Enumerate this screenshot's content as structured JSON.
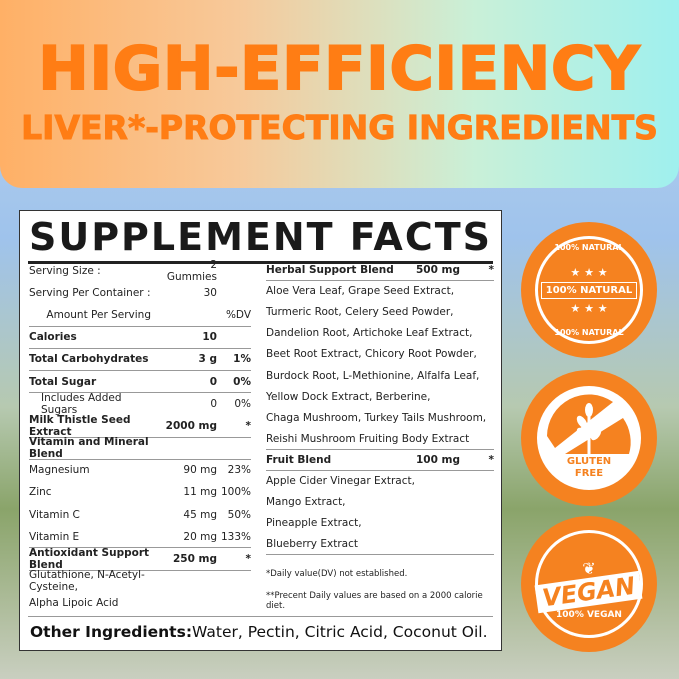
{
  "banner": {
    "line1": "HIGH-EFFICIENCY",
    "line2": "LIVER*-PROTECTING INGREDIENTS"
  },
  "facts": {
    "title": "SUPPLEMENT FACTS",
    "left": [
      {
        "name": "Serving Size :",
        "amount": "2 Gummies",
        "dv": ""
      },
      {
        "name": "Serving Per Container :",
        "amount": "30",
        "dv": ""
      },
      {
        "name": "Amount Per Serving",
        "amount": "",
        "dv": "%DV"
      },
      {
        "name": "Calories",
        "amount": "10",
        "dv": ""
      },
      {
        "name": "Total Carbohydrates",
        "amount": "3 g",
        "dv": "1%"
      },
      {
        "name": "Total Sugar",
        "amount": "0",
        "dv": "0%"
      },
      {
        "name": "Includes Added Sugars",
        "amount": "0",
        "dv": "0%"
      },
      {
        "name": "Milk Thistle Seed Extract",
        "amount": "2000 mg",
        "dv": "*"
      },
      {
        "name": "Vitamin and Mineral Blend",
        "amount": "",
        "dv": ""
      },
      {
        "name": "Magnesium",
        "amount": "90 mg",
        "dv": "23%"
      },
      {
        "name": "Zinc",
        "amount": "11 mg",
        "dv": "100%"
      },
      {
        "name": "Vitamin C",
        "amount": "45 mg",
        "dv": "50%"
      },
      {
        "name": "Vitamin E",
        "amount": "20 mg",
        "dv": "133%"
      },
      {
        "name": "Antioxidant Support Blend",
        "amount": "250 mg",
        "dv": "*"
      },
      {
        "name": "Glutathione, N-Acetyl-Cysteine,",
        "amount": "",
        "dv": ""
      },
      {
        "name": "Alpha Lipoic Acid",
        "amount": "",
        "dv": ""
      }
    ],
    "right": [
      {
        "name": "Herbal Support Blend",
        "amount": "500 mg",
        "dv": "*"
      },
      {
        "name": "Aloe Vera Leaf, Grape Seed Extract,",
        "amount": "",
        "dv": ""
      },
      {
        "name": "Turmeric Root, Celery Seed Powder,",
        "amount": "",
        "dv": ""
      },
      {
        "name": "Dandelion Root, Artichoke Leaf Extract,",
        "amount": "",
        "dv": ""
      },
      {
        "name": "Beet Root Extract, Chicory Root Powder,",
        "amount": "",
        "dv": ""
      },
      {
        "name": "Burdock Root, L-Methionine, Alfalfa Leaf,",
        "amount": "",
        "dv": ""
      },
      {
        "name": "Yellow Dock Extract, Berberine,",
        "amount": "",
        "dv": ""
      },
      {
        "name": "Chaga Mushroom, Turkey Tails Mushroom,",
        "amount": "",
        "dv": ""
      },
      {
        "name": "Reishi Mushroom Fruiting Body Extract",
        "amount": "",
        "dv": ""
      },
      {
        "name": "Fruit Blend",
        "amount": "100 mg",
        "dv": "*"
      },
      {
        "name": "Apple Cider Vinegar Extract,",
        "amount": "",
        "dv": ""
      },
      {
        "name": "Mango Extract,",
        "amount": "",
        "dv": ""
      },
      {
        "name": "Pineapple Extract,",
        "amount": "",
        "dv": ""
      },
      {
        "name": "Blueberry Extract",
        "amount": "",
        "dv": ""
      }
    ],
    "footnotes": [
      "*Daily value(DV) not established.",
      "**Precent Daily values are based on a 2000 calorie diet."
    ],
    "other_label": "Other Ingredients:",
    "other_value": "Water, Pectin, Citric Acid, Coconut Oil."
  },
  "badges": {
    "natural": {
      "ring_top": "100% NATURAL",
      "band": "100% NATURAL",
      "ring_bottom": "100% NATURAL",
      "stars": "★ ★ ★"
    },
    "gluten": {
      "line1": "GLUTEN",
      "line2": "FREE"
    },
    "vegan": {
      "main": "VEGAN",
      "sub": "100% VEGAN"
    },
    "color": "#f58220"
  }
}
